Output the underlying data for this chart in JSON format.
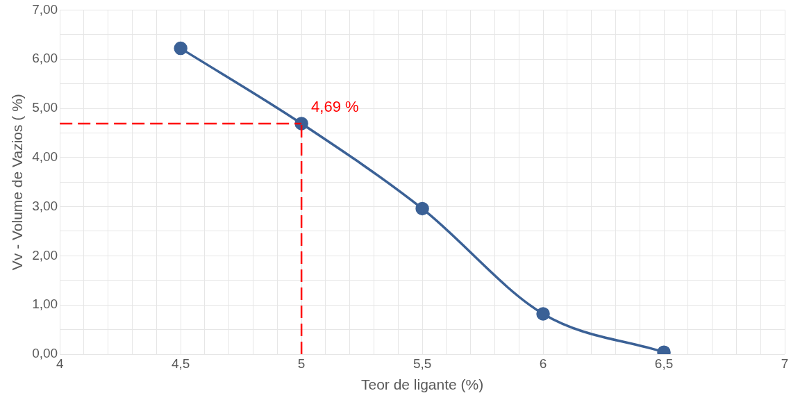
{
  "chart_data": {
    "type": "line",
    "xlabel": "Teor de ligante (%)",
    "ylabel": "Vv - Volume de Vazios ( %)",
    "x": [
      4.5,
      5,
      5.5,
      6,
      6.5
    ],
    "series": [
      {
        "color": "#3b6196",
        "values": [
          6.22,
          4.69,
          2.96,
          0.82,
          0.04
        ]
      }
    ],
    "xlim": [
      4,
      7
    ],
    "ylim": [
      0,
      7
    ],
    "xticks": [
      {
        "value": 4,
        "label": "4"
      },
      {
        "value": 4.1,
        "label": null
      },
      {
        "value": 4.2,
        "label": null
      },
      {
        "value": 4.3,
        "label": null
      },
      {
        "value": 4.4,
        "label": null
      },
      {
        "value": 4.5,
        "label": "4,5"
      },
      {
        "value": 4.6,
        "label": null
      },
      {
        "value": 4.7,
        "label": null
      },
      {
        "value": 4.8,
        "label": null
      },
      {
        "value": 4.9,
        "label": null
      },
      {
        "value": 5,
        "label": "5"
      },
      {
        "value": 5.1,
        "label": null
      },
      {
        "value": 5.2,
        "label": null
      },
      {
        "value": 5.3,
        "label": null
      },
      {
        "value": 5.4,
        "label": null
      },
      {
        "value": 5.5,
        "label": "5,5"
      },
      {
        "value": 5.6,
        "label": null
      },
      {
        "value": 5.7,
        "label": null
      },
      {
        "value": 5.8,
        "label": null
      },
      {
        "value": 5.9,
        "label": null
      },
      {
        "value": 6,
        "label": "6"
      },
      {
        "value": 6.1,
        "label": null
      },
      {
        "value": 6.2,
        "label": null
      },
      {
        "value": 6.3,
        "label": null
      },
      {
        "value": 6.4,
        "label": null
      },
      {
        "value": 6.5,
        "label": "6,5"
      },
      {
        "value": 6.6,
        "label": null
      },
      {
        "value": 6.7,
        "label": null
      },
      {
        "value": 6.8,
        "label": null
      },
      {
        "value": 6.9,
        "label": null
      },
      {
        "value": 7,
        "label": "7"
      }
    ],
    "yticks": [
      {
        "value": 0,
        "label": "0,00"
      },
      {
        "value": 0.5,
        "label": null
      },
      {
        "value": 1,
        "label": "1,00"
      },
      {
        "value": 1.5,
        "label": null
      },
      {
        "value": 2,
        "label": "2,00"
      },
      {
        "value": 2.5,
        "label": null
      },
      {
        "value": 3,
        "label": "3,00"
      },
      {
        "value": 3.5,
        "label": null
      },
      {
        "value": 4,
        "label": "4,00"
      },
      {
        "value": 4.5,
        "label": null
      },
      {
        "value": 5,
        "label": "5,00"
      },
      {
        "value": 5.5,
        "label": null
      },
      {
        "value": 6,
        "label": "6,00"
      },
      {
        "value": 6.5,
        "label": null
      },
      {
        "value": 7,
        "label": "7,00"
      }
    ],
    "ref_lines": [
      {
        "axis": "x",
        "value": 5,
        "color": "#ff0000",
        "line_style": "dashed"
      },
      {
        "axis": "y",
        "value": 4.69,
        "color": "#ff0000",
        "line_style": "dashed"
      }
    ],
    "annotations": [
      {
        "text": "4,69 %",
        "x": 5,
        "y": 4.69
      }
    ],
    "grid": true,
    "marker": "circle",
    "line_style": "solid"
  }
}
